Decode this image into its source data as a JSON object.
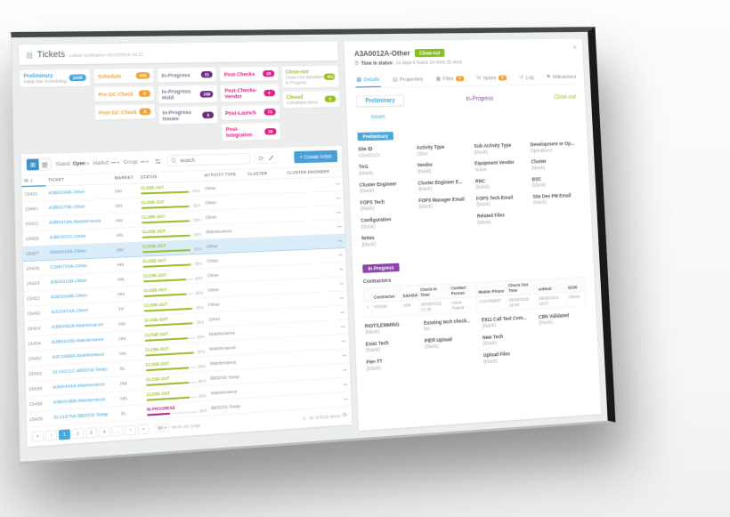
{
  "colors": {
    "accent_blue": "#49a9dc",
    "orange": "#f0a437",
    "purple": "#6b2d80",
    "pink": "#e0218a",
    "green": "#94c11e",
    "button_blue": "#4a9fd8",
    "chip_green": "#85bf25"
  },
  "icons": {
    "tickets": "▤",
    "grid_view": "⊞",
    "list_view": "▦",
    "caret": "▾",
    "refresh": "⟳",
    "close": "×",
    "clock": "◷",
    "sort_down": "↓",
    "kebab": "⋯",
    "plus": "+"
  },
  "left": {
    "header": {
      "title": "Tickets",
      "subtitle": "Latest notification 05/23/2018 00:21"
    },
    "summary": {
      "col1": [
        {
          "label": "Preliminary",
          "sub": "Initial Site Scheduling",
          "count": "1445"
        }
      ],
      "col2": [
        {
          "label": "Schedule",
          "count": "443"
        },
        {
          "label": "Pre GC Check",
          "count": "0"
        },
        {
          "label": "Post GC Check",
          "count": "0"
        }
      ],
      "col3": [
        {
          "label": "In-Progress",
          "count": "31"
        },
        {
          "label": "In-Progress Hold",
          "count": "266"
        },
        {
          "label": "In-Progress Issues",
          "count": "0"
        }
      ],
      "col4": [
        {
          "label": "Post-Checks",
          "count": "45"
        },
        {
          "label": "Post-Checks-Vendor",
          "count": "0"
        },
        {
          "label": "Post-Launch",
          "count": "73"
        },
        {
          "label": "Post-Integration",
          "count": "36"
        }
      ],
      "col5": [
        {
          "label": "Close-out",
          "sub": "Close-Out Validation in Progress",
          "count": "661"
        },
        {
          "label": "Closed",
          "sub": "Completed Items",
          "count": "0"
        }
      ]
    },
    "toolbar": {
      "status_label": "Status:",
      "status_value": "Open",
      "market_label": "Market:",
      "market_value": "—",
      "group_label": "Group:",
      "group_value": "—",
      "search_placeholder": "search",
      "create_icon": "+",
      "create_label": "Create ticket"
    },
    "table": {
      "headers": [
        "ID",
        "Ticket",
        "Market",
        "Status",
        "Activity Type",
        "Cluster",
        "Cluster Engineer"
      ],
      "rows": [
        {
          "id": "15431",
          "ticket": "A3B0034B-Other",
          "market": "HN",
          "status": "CLOSE-OUT",
          "state": "close-out",
          "pct": 95,
          "pct_label": "95%",
          "activity": "Other",
          "row_state": ""
        },
        {
          "id": "15441",
          "ticket": "A3B0375B-Other",
          "market": "HN",
          "status": "CLOSE-OUT",
          "state": "close-out",
          "pct": 95,
          "pct_label": "95%",
          "activity": "Other",
          "row_state": ""
        },
        {
          "id": "15421",
          "ticket": "A3B0418A-Maintenance",
          "market": "HN",
          "status": "CLOSE-OUT",
          "state": "close-out",
          "pct": 95,
          "pct_label": "95%",
          "activity": "Other",
          "row_state": ""
        },
        {
          "id": "15425",
          "ticket": "A3B0002C-Other",
          "market": "HN",
          "status": "CLOSE-OUT",
          "state": "close-out",
          "pct": 95,
          "pct_label": "95%",
          "activity": "Maintenance",
          "row_state": ""
        },
        {
          "id": "15427",
          "ticket": "A3A0012A-Other",
          "market": "HN",
          "status": "CLOSE-OUT",
          "state": "close-out",
          "pct": 95,
          "pct_label": "95%",
          "activity": "Other",
          "row_state": "selected"
        },
        {
          "id": "15428",
          "ticket": "C3N0703A-Other",
          "market": "HN",
          "status": "CLOSE-OUT",
          "state": "close-out",
          "pct": 95,
          "pct_label": "95%",
          "activity": "Other",
          "row_state": ""
        },
        {
          "id": "15423",
          "ticket": "A3D0311B-Other",
          "market": "HN",
          "status": "CLOSE-OUT",
          "state": "close-out",
          "pct": 85,
          "pct_label": "85%",
          "activity": "Other",
          "row_state": ""
        },
        {
          "id": "15422",
          "ticket": "A3E0044B-Other",
          "market": "HN",
          "status": "CLOSE-OUT",
          "state": "close-out",
          "pct": 85,
          "pct_label": "85%",
          "activity": "Other",
          "row_state": ""
        },
        {
          "id": "15432",
          "ticket": "A3G0919A-Other",
          "market": "TP",
          "status": "CLOSE-OUT",
          "state": "close-out",
          "pct": 95,
          "pct_label": "95%",
          "activity": "Other",
          "row_state": ""
        },
        {
          "id": "15424",
          "ticket": "A3B0062A-Maintenance",
          "market": "HN",
          "status": "CLOSE-OUT",
          "state": "close-out",
          "pct": 95,
          "pct_label": "95%",
          "activity": "Other",
          "row_state": ""
        },
        {
          "id": "15434",
          "ticket": "A3B0103B-Maintenance",
          "market": "HN",
          "status": "CLOSE-OUT",
          "state": "close-out",
          "pct": 85,
          "pct_label": "85%",
          "activity": "Maintenance",
          "row_state": ""
        },
        {
          "id": "15442",
          "ticket": "A3C0066A-Maintenance",
          "market": "HN",
          "status": "CLOSE-OUT",
          "state": "close-out",
          "pct": 95,
          "pct_label": "95%",
          "activity": "Maintenance",
          "row_state": ""
        },
        {
          "id": "15433",
          "ticket": "SL03121C-BB5216 Swap",
          "market": "SL",
          "status": "CLOSE-OUT",
          "state": "close-out",
          "pct": 85,
          "pct_label": "85%",
          "activity": "Maintenance",
          "row_state": ""
        },
        {
          "id": "15439",
          "ticket": "A3B0444A-Maintenance",
          "market": "HN",
          "status": "CLOSE-OUT",
          "state": "close-out",
          "pct": 85,
          "pct_label": "85%",
          "activity": "BB5216 Swap",
          "row_state": ""
        },
        {
          "id": "15438",
          "ticket": "A3B0146B-Maintenance",
          "market": "HN",
          "status": "CLOSE-OUT",
          "state": "close-out",
          "pct": 85,
          "pct_label": "85%",
          "activity": "Maintenance",
          "row_state": ""
        },
        {
          "id": "15435",
          "ticket": "SL01876A-BB5216 Swap",
          "market": "SL",
          "status": "IN-PROGRESS",
          "state": "in-progress",
          "pct": 45,
          "pct_label": "45%",
          "activity": "BB5216 Swap",
          "row_state": ""
        }
      ]
    },
    "pager": {
      "pages": [
        {
          "t": "«",
          "cls": ""
        },
        {
          "t": "‹",
          "cls": ""
        },
        {
          "t": "1",
          "cls": "active"
        },
        {
          "t": "2",
          "cls": ""
        },
        {
          "t": "3",
          "cls": ""
        },
        {
          "t": "4",
          "cls": ""
        },
        {
          "t": "…",
          "cls": ""
        },
        {
          "t": "›",
          "cls": ""
        },
        {
          "t": "»",
          "cls": ""
        }
      ],
      "size": "50",
      "size_suffix": "items per page",
      "range": "1 - 50 of 5030 items"
    }
  },
  "right": {
    "header": {
      "title": "A3A0012A-Other",
      "status_chip": "Close-out",
      "time_label": "Time in status:",
      "time_value": "14 days 6 hours 14 mins 25 secs"
    },
    "tabs": [
      {
        "glyph": "▦",
        "label": "Details",
        "badge": null,
        "cls": "active"
      },
      {
        "glyph": "▤",
        "label": "Properties",
        "badge": null,
        "cls": ""
      },
      {
        "glyph": "▣",
        "label": "Files",
        "badge": "1",
        "cls": ""
      },
      {
        "glyph": "✉",
        "label": "Notes",
        "badge": "0",
        "cls": ""
      },
      {
        "glyph": "↺",
        "label": "Log",
        "badge": null,
        "cls": ""
      },
      {
        "glyph": "⚑",
        "label": "Milestones",
        "badge": null,
        "cls": ""
      }
    ],
    "stepper": {
      "row1": [
        {
          "label": "Preliminary",
          "cls": "st-preliminary"
        },
        {
          "label": "In-Progress",
          "cls": "st-inprogress"
        },
        {
          "label": "Close-out",
          "cls": "st-closeout"
        }
      ],
      "issues": "Issues"
    },
    "preliminary": {
      "tag": "Preliminary",
      "col1": [
        {
          "label": "Site ID",
          "value": "A3A0012A"
        },
        {
          "label": "TAG",
          "value": "(blank)"
        },
        {
          "label": "Cluster Engineer",
          "value": "(blank)"
        },
        {
          "label": "FOPS Tech",
          "value": "(blank)"
        },
        {
          "label": "Configuration",
          "value": "(blank)"
        },
        {
          "label": "Notes",
          "value": "(blank)"
        }
      ],
      "col2": [
        {
          "label": "Activity Type",
          "value": "Other"
        },
        {
          "label": "Vendor",
          "value": "(blank)"
        },
        {
          "label": "Cluster Engineer E...",
          "value": "(blank)"
        },
        {
          "label": "FOPS Manager Email",
          "value": "(blank)"
        }
      ],
      "col3": [
        {
          "label": "Sub-Activity Type",
          "value": "(blank)"
        },
        {
          "label": "Equipment Vendor",
          "value": "Nokia"
        },
        {
          "label": "RNC",
          "value": "(blank)"
        },
        {
          "label": "FOPS Tech Email",
          "value": "(blank)"
        },
        {
          "label": "Related Files",
          "value": "(blank)"
        }
      ],
      "col4": [
        {
          "label": "Development or Op...",
          "value": "Operations"
        },
        {
          "label": "Cluster",
          "value": "(blank)"
        },
        {
          "label": "BSC",
          "value": "(blank)"
        },
        {
          "label": "Site Dev PM Email",
          "value": "(blank)"
        }
      ]
    },
    "inprogress": {
      "tag": "In-Progress",
      "contractors_label": "Contractors",
      "table": {
        "headers": [
          "",
          "Contractor",
          "SA/nSA",
          "Check In Time",
          "Contact Person",
          "Mobile Phone",
          "Check Out Time",
          "unNest",
          "SOW"
        ],
        "row": [
          "+",
          "NOKIA",
          "nSA",
          "05/08/2018 17:39",
          "OmAr Padinit",
          "7133766609",
          "05/08/2018 18:00",
          "05/08/2018 18:07",
          "Others"
        ]
      },
      "col1": [
        {
          "label": "RIOT/LEMMING",
          "value": "(blank)"
        },
        {
          "label": "Exist Tech",
          "value": "(blank)"
        },
        {
          "label": "Pier-TT",
          "value": "(blank)"
        }
      ],
      "col2": [
        {
          "label": "Existing tech check...",
          "value": "No"
        },
        {
          "label": "PIER Upload",
          "value": "(blank)"
        }
      ],
      "col3": [
        {
          "label": "E911 Call Test Com...",
          "value": "(blank)"
        },
        {
          "label": "New Tech",
          "value": "(blank)"
        },
        {
          "label": "Upload Files",
          "value": "(blank)"
        }
      ],
      "col4": [
        {
          "label": "CBN Validated",
          "value": "(blank)"
        }
      ]
    }
  }
}
